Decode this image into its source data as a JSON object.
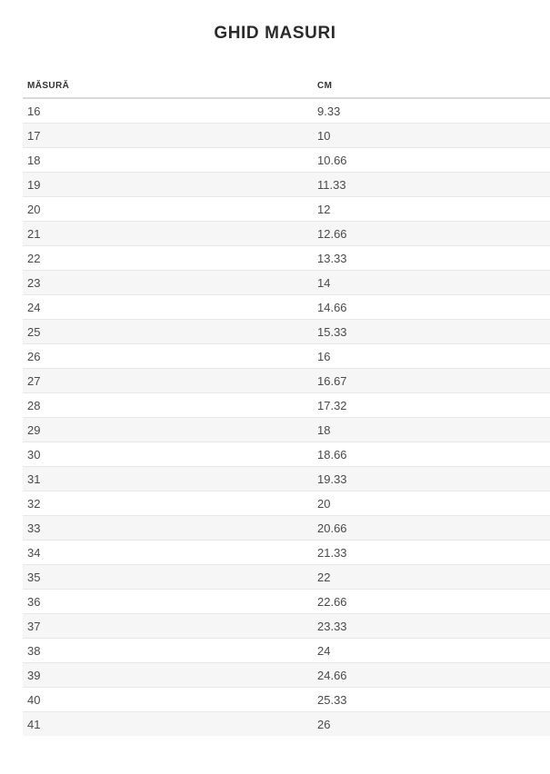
{
  "page": {
    "title": "GHID MASURI"
  },
  "table": {
    "columns": [
      "MĂSURĂ",
      "CM"
    ],
    "rows": [
      {
        "masura": "16",
        "cm": "9.33"
      },
      {
        "masura": "17",
        "cm": "10"
      },
      {
        "masura": "18",
        "cm": "10.66"
      },
      {
        "masura": "19",
        "cm": "11.33"
      },
      {
        "masura": "20",
        "cm": "12"
      },
      {
        "masura": "21",
        "cm": "12.66"
      },
      {
        "masura": "22",
        "cm": "13.33"
      },
      {
        "masura": "23",
        "cm": "14"
      },
      {
        "masura": "24",
        "cm": "14.66"
      },
      {
        "masura": "25",
        "cm": "15.33"
      },
      {
        "masura": "26",
        "cm": "16"
      },
      {
        "masura": "27",
        "cm": "16.67"
      },
      {
        "masura": "28",
        "cm": "17.32"
      },
      {
        "masura": "29",
        "cm": "18"
      },
      {
        "masura": "30",
        "cm": "18.66"
      },
      {
        "masura": "31",
        "cm": "19.33"
      },
      {
        "masura": "32",
        "cm": "20"
      },
      {
        "masura": "33",
        "cm": "20.66"
      },
      {
        "masura": "34",
        "cm": "21.33"
      },
      {
        "masura": "35",
        "cm": "22"
      },
      {
        "masura": "36",
        "cm": "22.66"
      },
      {
        "masura": "37",
        "cm": "23.33"
      },
      {
        "masura": "38",
        "cm": "24"
      },
      {
        "masura": "39",
        "cm": "24.66"
      },
      {
        "masura": "40",
        "cm": "25.33"
      },
      {
        "masura": "41",
        "cm": "26"
      }
    ]
  },
  "colors": {
    "title_text": "#2b2b2b",
    "header_text": "#333333",
    "cell_text": "#4a4a4a",
    "stripe": "#f6f6f6",
    "row_border": "#e8e8e8",
    "header_border": "#d9d9d9",
    "background": "#ffffff"
  }
}
